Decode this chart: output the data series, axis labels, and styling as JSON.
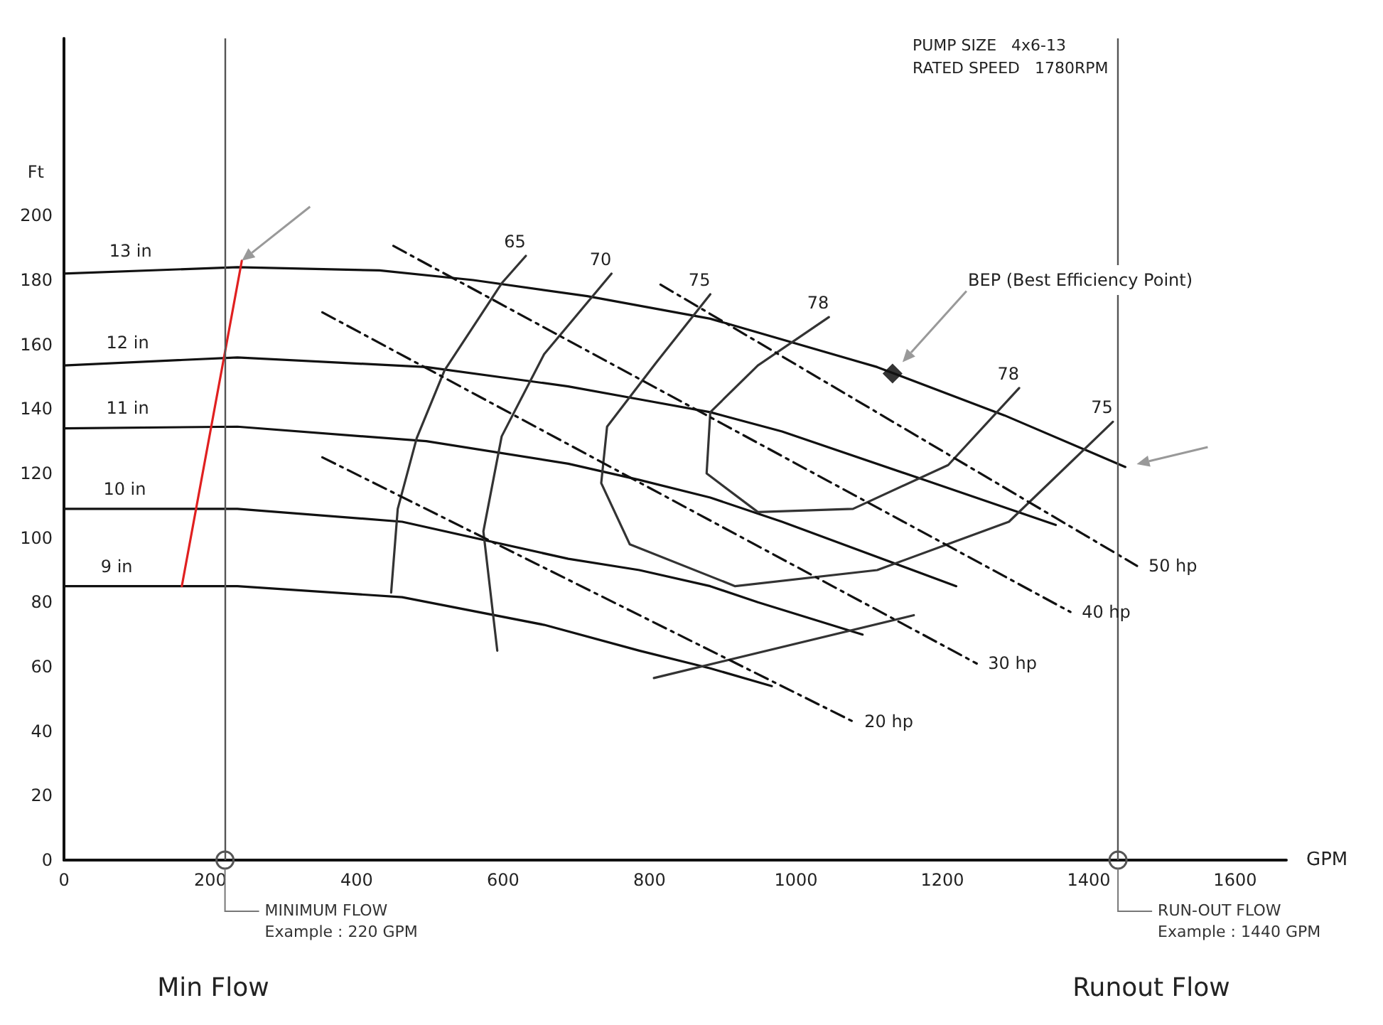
{
  "chart_data": {
    "type": "line",
    "xlabel": "GPM",
    "ylabel": "Ft",
    "xlim": [
      0,
      1670
    ],
    "xticks": [
      0,
      200,
      400,
      600,
      800,
      1000,
      1200,
      1400,
      1600
    ],
    "ylim": [
      0,
      255
    ],
    "yticks": [
      0,
      20,
      40,
      60,
      80,
      100,
      120,
      140,
      160,
      180,
      200
    ],
    "grid": false,
    "marker": "none",
    "line_style": "solid",
    "series": [
      {
        "color": "#111111",
        "x": [
          0,
          237,
          431,
          559,
          715,
          883,
          1111,
          1285,
          1450
        ],
        "values": [
          182,
          184,
          183,
          180,
          175,
          168,
          153,
          138,
          122
        ]
      },
      {
        "color": "#111111",
        "x": [
          0,
          237,
          495,
          689,
          786,
          883,
          981,
          1175,
          1355
        ],
        "values": [
          153.5,
          156,
          153,
          147,
          143,
          139,
          133,
          118,
          104
        ]
      },
      {
        "color": "#111111",
        "x": [
          0,
          237,
          495,
          689,
          786,
          883,
          981,
          1219
        ],
        "values": [
          134,
          134.5,
          130,
          123,
          118,
          112.5,
          105,
          85
        ]
      },
      {
        "color": "#111111",
        "x": [
          0,
          237,
          462,
          689,
          786,
          883,
          948,
          1091
        ],
        "values": [
          109,
          109,
          105,
          93.5,
          90,
          85,
          80,
          70
        ]
      },
      {
        "color": "#111111",
        "x": [
          0,
          237,
          462,
          656,
          786,
          883,
          967
        ],
        "values": [
          85,
          85,
          81.6,
          73,
          65,
          59.5,
          54
        ]
      },
      {
        "color": "#e02020",
        "x": [
          161,
          243
        ],
        "values": [
          85,
          186
        ]
      },
      {
        "color": "#333333",
        "x": [
          631,
          598,
          520,
          482,
          456,
          447
        ],
        "values": [
          187.5,
          179,
          152,
          131,
          109,
          83
        ]
      },
      {
        "color": "#333333",
        "x": [
          748,
          656,
          598,
          573,
          592
        ],
        "values": [
          182,
          157,
          131.5,
          102,
          65
        ]
      },
      {
        "color": "#333333",
        "x": [
          883,
          806,
          742,
          734,
          773,
          917,
          1111,
          1291,
          1433
        ],
        "values": [
          175.6,
          153.5,
          134.5,
          117,
          98,
          85,
          90,
          105,
          136
        ]
      },
      {
        "color": "#333333",
        "x": [
          1045,
          948,
          883,
          878,
          948,
          1078,
          1208,
          1305
        ],
        "values": [
          168.5,
          153.5,
          139,
          120,
          108,
          109,
          122.6,
          146.5
        ]
      },
      {
        "color": "#333333",
        "x": [
          806,
          1161
        ],
        "values": [
          56.5,
          76
        ]
      },
      {
        "color": "#111111",
        "line_style": "dashed",
        "x": [
          815,
          1466
        ],
        "values": [
          178.6,
          91.3
        ]
      },
      {
        "color": "#111111",
        "line_style": "dashed",
        "x": [
          450,
          1375
        ],
        "values": [
          190.6,
          77
        ]
      },
      {
        "color": "#111111",
        "line_style": "dashed",
        "x": [
          353,
          1247
        ],
        "values": [
          170,
          61
        ]
      },
      {
        "color": "#111111",
        "line_style": "dashed",
        "x": [
          353,
          1078
        ],
        "values": [
          125,
          43
        ]
      },
      {
        "type": "scatter",
        "marker": "diamond",
        "color": "#000000",
        "x": [
          1132
        ],
        "values": [
          151
        ]
      }
    ],
    "ref_lines": [
      {
        "axis": "x",
        "value": 220,
        "label": "MINIMUM FLOW\nExample : 220 GPM",
        "color": "#555555"
      },
      {
        "axis": "x",
        "value": 1440,
        "label": "RUN-OUT FLOW\nExample : 1440 GPM",
        "color": "#555555"
      }
    ],
    "annotations": [
      "PUMP SIZE   4x6-13\nRATED SPEED   1780RPM",
      "Min Flow",
      "Runout Flow",
      {
        "text": "13 in",
        "x": 91,
        "y": 182.8
      },
      {
        "text": "12 in",
        "x": 87,
        "y": 154.4
      },
      {
        "text": "11 in",
        "x": 87,
        "y": 134.2
      },
      {
        "text": "10 in",
        "x": 83,
        "y": 109
      },
      {
        "text": "9 in",
        "x": 72,
        "y": 85
      },
      {
        "text": "65",
        "x": 631,
        "y": 187.5
      },
      {
        "text": "70",
        "x": 748,
        "y": 182
      },
      {
        "text": "75",
        "x": 883,
        "y": 175.6
      },
      {
        "text": "78",
        "x": 1045,
        "y": 168.5
      },
      {
        "text": "78",
        "x": 1305,
        "y": 146.5
      },
      {
        "text": "75",
        "x": 1433,
        "y": 136
      },
      {
        "text": "50 hp",
        "x": 1466,
        "y": 91.3
      },
      {
        "text": "40 hp",
        "x": 1375,
        "y": 77
      },
      {
        "text": "30 hp",
        "x": 1247,
        "y": 61
      },
      {
        "text": "20 hp",
        "x": 1078,
        "y": 43
      },
      "BEP (Best Efficiency Point)"
    ]
  }
}
